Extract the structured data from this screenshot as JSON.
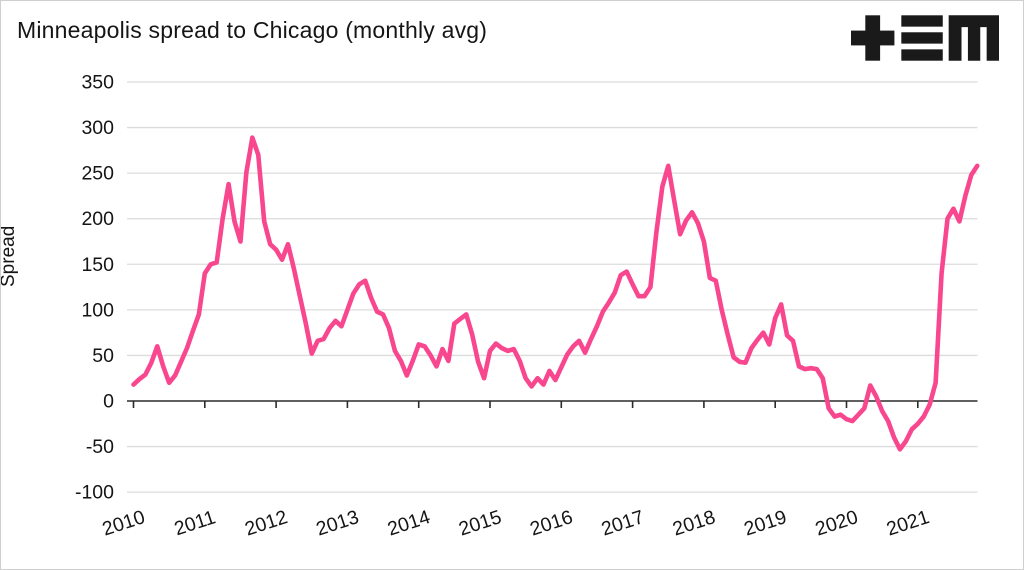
{
  "page": {
    "title": "Minneapolis spread to Chicago (monthly avg)"
  },
  "logo": {
    "name": "tem-logo",
    "color": "#1a1a1a"
  },
  "chart_data": {
    "type": "line",
    "title": "Minneapolis spread to Chicago (monthly avg)",
    "xlabel": "",
    "ylabel": "Spread",
    "series_name": "Minneapolis spread to Chicago (monthly avg)",
    "line_color": "#F8478E",
    "grid": "horizontal gridlines only, zero axis emphasized with year tick marks",
    "legend": "none",
    "x_frequency": "monthly",
    "x_start": "2010-01",
    "x_end": "2021-11",
    "x_tick_labels": [
      "2010",
      "2011",
      "2012",
      "2013",
      "2014",
      "2015",
      "2016",
      "2017",
      "2018",
      "2019",
      "2020",
      "2021"
    ],
    "y_ticks": [
      350,
      300,
      250,
      200,
      150,
      100,
      50,
      0,
      -50,
      -100
    ],
    "ylim": [
      -100,
      350
    ],
    "values": [
      18,
      24,
      29,
      42,
      60,
      38,
      20,
      28,
      43,
      58,
      77,
      95,
      140,
      150,
      152,
      200,
      238,
      197,
      175,
      251,
      289,
      270,
      197,
      172,
      166,
      155,
      172,
      145,
      115,
      85,
      52,
      66,
      68,
      80,
      88,
      82,
      100,
      118,
      128,
      132,
      113,
      98,
      95,
      80,
      55,
      44,
      28,
      44,
      62,
      60,
      50,
      38,
      57,
      44,
      85,
      90,
      95,
      73,
      43,
      25,
      55,
      63,
      58,
      55,
      57,
      44,
      25,
      16,
      25,
      18,
      33,
      23,
      37,
      51,
      60,
      66,
      53,
      68,
      82,
      98,
      108,
      119,
      138,
      142,
      128,
      115,
      115,
      125,
      185,
      235,
      258,
      220,
      183,
      198,
      207,
      195,
      175,
      135,
      132,
      100,
      73,
      48,
      43,
      42,
      58,
      67,
      75,
      62,
      91,
      106,
      72,
      66,
      38,
      35,
      36,
      35,
      25,
      -8,
      -17,
      -15,
      -20,
      -22,
      -15,
      -8,
      17,
      5,
      -11,
      -22,
      -40,
      -53,
      -44,
      -31,
      -25,
      -17,
      -4,
      20,
      140,
      200,
      211,
      197,
      225,
      248,
      258
    ]
  }
}
